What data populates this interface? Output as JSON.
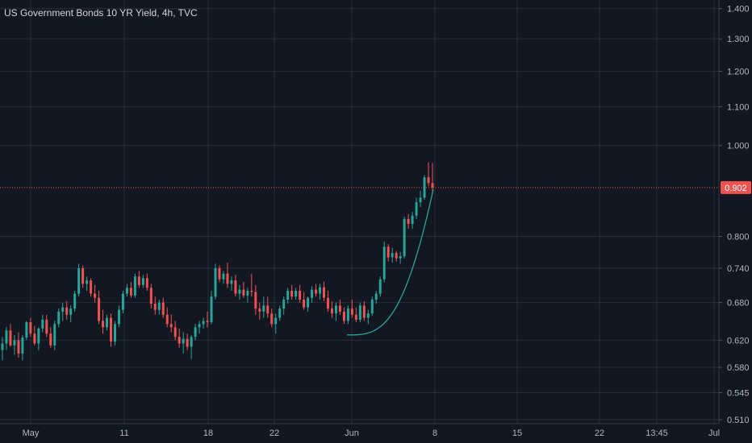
{
  "header": {
    "title": "US Government Bonds 10 YR Yield, 4h, TVC"
  },
  "colors": {
    "background": "#131722",
    "grid": "#2a2e39",
    "up": "#26a69a",
    "down": "#ef5350",
    "price_line": "#ef5350",
    "curve": "#26a69a",
    "text": "#b2b5be"
  },
  "chart_data": {
    "type": "candlestick",
    "title": "US Government Bonds 10 YR Yield, 4h, TVC",
    "y_scale": "log",
    "ylim": [
      0.505,
      1.43
    ],
    "y_ticks": [
      "1.400",
      "1.300",
      "1.200",
      "1.100",
      "1.000",
      "0.800",
      "0.740",
      "0.680",
      "0.620",
      "0.580",
      "0.545",
      "0.510"
    ],
    "x_ticks": [
      "May",
      "11",
      "18",
      "22",
      "Jun",
      "8",
      "15",
      "22",
      "13:45",
      "Jul"
    ],
    "current_value": "0.902",
    "grid": true,
    "series": [
      {
        "bars": [
          {
            "o": 0.605,
            "h": 0.625,
            "l": 0.59,
            "c": 0.615
          },
          {
            "o": 0.615,
            "h": 0.64,
            "l": 0.605,
            "c": 0.635
          },
          {
            "o": 0.635,
            "h": 0.645,
            "l": 0.61,
            "c": 0.612
          },
          {
            "o": 0.612,
            "h": 0.628,
            "l": 0.598,
            "c": 0.62
          },
          {
            "o": 0.62,
            "h": 0.632,
            "l": 0.594,
            "c": 0.6
          },
          {
            "o": 0.6,
            "h": 0.628,
            "l": 0.59,
            "c": 0.624
          },
          {
            "o": 0.624,
            "h": 0.65,
            "l": 0.62,
            "c": 0.648
          },
          {
            "o": 0.648,
            "h": 0.655,
            "l": 0.625,
            "c": 0.63
          },
          {
            "o": 0.63,
            "h": 0.642,
            "l": 0.612,
            "c": 0.615
          },
          {
            "o": 0.615,
            "h": 0.64,
            "l": 0.605,
            "c": 0.638
          },
          {
            "o": 0.638,
            "h": 0.66,
            "l": 0.632,
            "c": 0.652
          },
          {
            "o": 0.652,
            "h": 0.66,
            "l": 0.625,
            "c": 0.63
          },
          {
            "o": 0.63,
            "h": 0.64,
            "l": 0.608,
            "c": 0.612
          },
          {
            "o": 0.612,
            "h": 0.65,
            "l": 0.605,
            "c": 0.645
          },
          {
            "o": 0.645,
            "h": 0.67,
            "l": 0.64,
            "c": 0.665
          },
          {
            "o": 0.665,
            "h": 0.68,
            "l": 0.65,
            "c": 0.672
          },
          {
            "o": 0.672,
            "h": 0.682,
            "l": 0.652,
            "c": 0.66
          },
          {
            "o": 0.66,
            "h": 0.675,
            "l": 0.648,
            "c": 0.67
          },
          {
            "o": 0.67,
            "h": 0.7,
            "l": 0.665,
            "c": 0.695
          },
          {
            "o": 0.695,
            "h": 0.748,
            "l": 0.69,
            "c": 0.74
          },
          {
            "o": 0.74,
            "h": 0.745,
            "l": 0.705,
            "c": 0.712
          },
          {
            "o": 0.712,
            "h": 0.725,
            "l": 0.7,
            "c": 0.718
          },
          {
            "o": 0.718,
            "h": 0.722,
            "l": 0.69,
            "c": 0.695
          },
          {
            "o": 0.695,
            "h": 0.71,
            "l": 0.68,
            "c": 0.688
          },
          {
            "o": 0.688,
            "h": 0.7,
            "l": 0.645,
            "c": 0.65
          },
          {
            "o": 0.65,
            "h": 0.668,
            "l": 0.63,
            "c": 0.64
          },
          {
            "o": 0.64,
            "h": 0.66,
            "l": 0.635,
            "c": 0.655
          },
          {
            "o": 0.655,
            "h": 0.662,
            "l": 0.61,
            "c": 0.618
          },
          {
            "o": 0.618,
            "h": 0.65,
            "l": 0.612,
            "c": 0.645
          },
          {
            "o": 0.645,
            "h": 0.675,
            "l": 0.64,
            "c": 0.668
          },
          {
            "o": 0.668,
            "h": 0.7,
            "l": 0.662,
            "c": 0.695
          },
          {
            "o": 0.695,
            "h": 0.712,
            "l": 0.69,
            "c": 0.705
          },
          {
            "o": 0.705,
            "h": 0.715,
            "l": 0.688,
            "c": 0.692
          },
          {
            "o": 0.692,
            "h": 0.73,
            "l": 0.688,
            "c": 0.725
          },
          {
            "o": 0.725,
            "h": 0.735,
            "l": 0.705,
            "c": 0.71
          },
          {
            "o": 0.71,
            "h": 0.728,
            "l": 0.705,
            "c": 0.722
          },
          {
            "o": 0.722,
            "h": 0.73,
            "l": 0.7,
            "c": 0.705
          },
          {
            "o": 0.705,
            "h": 0.712,
            "l": 0.67,
            "c": 0.678
          },
          {
            "o": 0.678,
            "h": 0.69,
            "l": 0.66,
            "c": 0.668
          },
          {
            "o": 0.668,
            "h": 0.685,
            "l": 0.66,
            "c": 0.68
          },
          {
            "o": 0.68,
            "h": 0.688,
            "l": 0.655,
            "c": 0.66
          },
          {
            "o": 0.66,
            "h": 0.672,
            "l": 0.64,
            "c": 0.645
          },
          {
            "o": 0.645,
            "h": 0.66,
            "l": 0.632,
            "c": 0.64
          },
          {
            "o": 0.64,
            "h": 0.65,
            "l": 0.62,
            "c": 0.625
          },
          {
            "o": 0.625,
            "h": 0.638,
            "l": 0.608,
            "c": 0.615
          },
          {
            "o": 0.615,
            "h": 0.632,
            "l": 0.6,
            "c": 0.622
          },
          {
            "o": 0.622,
            "h": 0.63,
            "l": 0.605,
            "c": 0.61
          },
          {
            "o": 0.61,
            "h": 0.628,
            "l": 0.592,
            "c": 0.625
          },
          {
            "o": 0.625,
            "h": 0.645,
            "l": 0.62,
            "c": 0.64
          },
          {
            "o": 0.64,
            "h": 0.65,
            "l": 0.63,
            "c": 0.645
          },
          {
            "o": 0.645,
            "h": 0.655,
            "l": 0.638,
            "c": 0.65
          },
          {
            "o": 0.65,
            "h": 0.665,
            "l": 0.64,
            "c": 0.648
          },
          {
            "o": 0.648,
            "h": 0.7,
            "l": 0.645,
            "c": 0.69
          },
          {
            "o": 0.69,
            "h": 0.748,
            "l": 0.685,
            "c": 0.74
          },
          {
            "o": 0.74,
            "h": 0.745,
            "l": 0.715,
            "c": 0.72
          },
          {
            "o": 0.72,
            "h": 0.735,
            "l": 0.712,
            "c": 0.73
          },
          {
            "o": 0.73,
            "h": 0.75,
            "l": 0.705,
            "c": 0.712
          },
          {
            "o": 0.712,
            "h": 0.725,
            "l": 0.7,
            "c": 0.718
          },
          {
            "o": 0.718,
            "h": 0.728,
            "l": 0.69,
            "c": 0.695
          },
          {
            "o": 0.695,
            "h": 0.71,
            "l": 0.685,
            "c": 0.702
          },
          {
            "o": 0.702,
            "h": 0.715,
            "l": 0.688,
            "c": 0.692
          },
          {
            "o": 0.692,
            "h": 0.705,
            "l": 0.68,
            "c": 0.7
          },
          {
            "o": 0.7,
            "h": 0.73,
            "l": 0.69,
            "c": 0.698
          },
          {
            "o": 0.698,
            "h": 0.71,
            "l": 0.66,
            "c": 0.67
          },
          {
            "o": 0.67,
            "h": 0.68,
            "l": 0.652,
            "c": 0.665
          },
          {
            "o": 0.665,
            "h": 0.69,
            "l": 0.655,
            "c": 0.675
          },
          {
            "o": 0.675,
            "h": 0.69,
            "l": 0.655,
            "c": 0.662
          },
          {
            "o": 0.662,
            "h": 0.67,
            "l": 0.64,
            "c": 0.645
          },
          {
            "o": 0.645,
            "h": 0.662,
            "l": 0.63,
            "c": 0.655
          },
          {
            "o": 0.655,
            "h": 0.675,
            "l": 0.65,
            "c": 0.67
          },
          {
            "o": 0.67,
            "h": 0.69,
            "l": 0.66,
            "c": 0.685
          },
          {
            "o": 0.685,
            "h": 0.705,
            "l": 0.678,
            "c": 0.7
          },
          {
            "o": 0.7,
            "h": 0.71,
            "l": 0.685,
            "c": 0.69
          },
          {
            "o": 0.69,
            "h": 0.705,
            "l": 0.685,
            "c": 0.7
          },
          {
            "o": 0.7,
            "h": 0.71,
            "l": 0.68,
            "c": 0.685
          },
          {
            "o": 0.685,
            "h": 0.698,
            "l": 0.668,
            "c": 0.672
          },
          {
            "o": 0.672,
            "h": 0.69,
            "l": 0.665,
            "c": 0.688
          },
          {
            "o": 0.688,
            "h": 0.708,
            "l": 0.68,
            "c": 0.702
          },
          {
            "o": 0.702,
            "h": 0.712,
            "l": 0.69,
            "c": 0.695
          },
          {
            "o": 0.695,
            "h": 0.712,
            "l": 0.685,
            "c": 0.706
          },
          {
            "o": 0.706,
            "h": 0.716,
            "l": 0.682,
            "c": 0.688
          },
          {
            "o": 0.688,
            "h": 0.7,
            "l": 0.665,
            "c": 0.67
          },
          {
            "o": 0.67,
            "h": 0.682,
            "l": 0.655,
            "c": 0.662
          },
          {
            "o": 0.662,
            "h": 0.68,
            "l": 0.65,
            "c": 0.675
          },
          {
            "o": 0.675,
            "h": 0.685,
            "l": 0.66,
            "c": 0.665
          },
          {
            "o": 0.665,
            "h": 0.672,
            "l": 0.645,
            "c": 0.65
          },
          {
            "o": 0.65,
            "h": 0.675,
            "l": 0.645,
            "c": 0.67
          },
          {
            "o": 0.67,
            "h": 0.685,
            "l": 0.655,
            "c": 0.66
          },
          {
            "o": 0.66,
            "h": 0.672,
            "l": 0.648,
            "c": 0.652
          },
          {
            "o": 0.652,
            "h": 0.68,
            "l": 0.648,
            "c": 0.675
          },
          {
            "o": 0.675,
            "h": 0.682,
            "l": 0.65,
            "c": 0.655
          },
          {
            "o": 0.655,
            "h": 0.668,
            "l": 0.645,
            "c": 0.662
          },
          {
            "o": 0.662,
            "h": 0.69,
            "l": 0.658,
            "c": 0.685
          },
          {
            "o": 0.685,
            "h": 0.7,
            "l": 0.678,
            "c": 0.695
          },
          {
            "o": 0.695,
            "h": 0.725,
            "l": 0.69,
            "c": 0.72
          },
          {
            "o": 0.72,
            "h": 0.79,
            "l": 0.715,
            "c": 0.78
          },
          {
            "o": 0.78,
            "h": 0.785,
            "l": 0.752,
            "c": 0.76
          },
          {
            "o": 0.76,
            "h": 0.778,
            "l": 0.75,
            "c": 0.768
          },
          {
            "o": 0.768,
            "h": 0.772,
            "l": 0.752,
            "c": 0.758
          },
          {
            "o": 0.758,
            "h": 0.77,
            "l": 0.748,
            "c": 0.762
          },
          {
            "o": 0.762,
            "h": 0.84,
            "l": 0.758,
            "c": 0.835
          },
          {
            "o": 0.835,
            "h": 0.845,
            "l": 0.815,
            "c": 0.825
          },
          {
            "o": 0.825,
            "h": 0.85,
            "l": 0.815,
            "c": 0.842
          },
          {
            "o": 0.842,
            "h": 0.88,
            "l": 0.835,
            "c": 0.87
          },
          {
            "o": 0.87,
            "h": 0.895,
            "l": 0.86,
            "c": 0.88
          },
          {
            "o": 0.88,
            "h": 0.93,
            "l": 0.875,
            "c": 0.925
          },
          {
            "o": 0.925,
            "h": 0.96,
            "l": 0.905,
            "c": 0.912
          },
          {
            "o": 0.912,
            "h": 0.958,
            "l": 0.89,
            "c": 0.902
          }
        ]
      }
    ]
  }
}
